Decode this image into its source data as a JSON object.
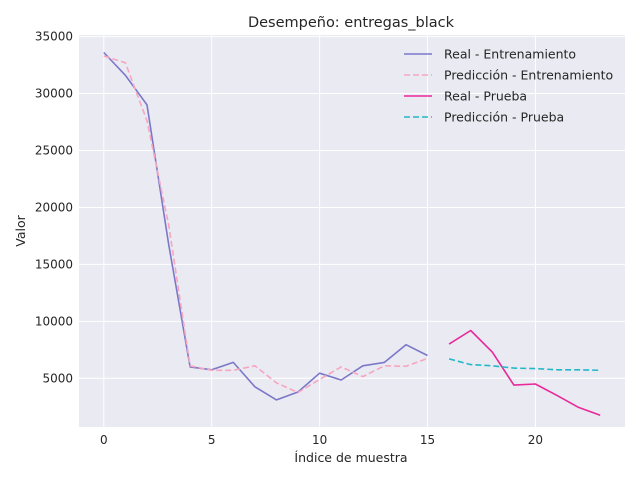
{
  "chart_data": {
    "type": "line",
    "title": "Desempeño: entregas_black",
    "xlabel": "Índice de muestra",
    "ylabel": "Valor",
    "xlim": [
      -1.15,
      24.15
    ],
    "ylim": [
      725,
      35140
    ],
    "xticks": [
      0,
      5,
      10,
      15,
      20
    ],
    "yticks": [
      5000,
      10000,
      15000,
      20000,
      25000,
      30000,
      35000
    ],
    "grid": true,
    "legend_position": "top-right",
    "series": [
      {
        "name": "Real - Entrenamiento",
        "color": "#7b78c9",
        "style": "solid",
        "x": [
          0,
          1,
          2,
          3,
          4,
          5,
          6,
          7,
          8,
          9,
          10,
          11,
          12,
          13,
          14,
          15
        ],
        "values": [
          33600,
          31600,
          29000,
          16800,
          6000,
          5750,
          6400,
          4250,
          3100,
          3800,
          5450,
          4850,
          6100,
          6400,
          7950,
          7000
        ]
      },
      {
        "name": "Predicción - Entrenamiento",
        "color": "#f7a6bf",
        "style": "dashed",
        "x": [
          0,
          1,
          2,
          3,
          4,
          5,
          6,
          7,
          8,
          9,
          10,
          11,
          12,
          13,
          14,
          15
        ],
        "values": [
          33300,
          32700,
          27600,
          18500,
          6100,
          5700,
          5700,
          6100,
          4600,
          3750,
          4900,
          6000,
          5150,
          6100,
          6050,
          6750
        ]
      },
      {
        "name": "Real - Prueba",
        "color": "#e9289a",
        "style": "solid",
        "x": [
          16,
          17,
          18,
          19,
          20,
          21,
          22,
          23
        ],
        "values": [
          8000,
          9200,
          7300,
          4400,
          4500,
          3500,
          2450,
          1750
        ]
      },
      {
        "name": "Predicción - Prueba",
        "color": "#22b8c8",
        "style": "dashed",
        "x": [
          16,
          17,
          18,
          19,
          20,
          21,
          22,
          23
        ],
        "values": [
          6700,
          6200,
          6100,
          5900,
          5850,
          5750,
          5750,
          5700
        ]
      }
    ]
  }
}
